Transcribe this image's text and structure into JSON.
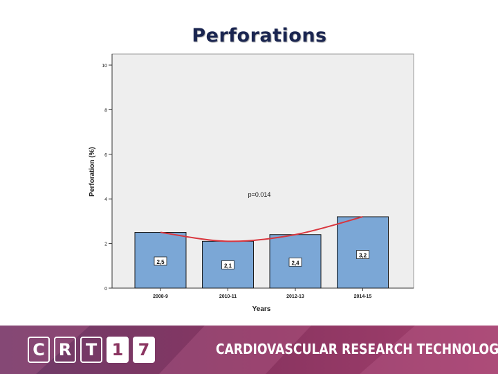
{
  "slide": {
    "title": "Perforations"
  },
  "chart_data": {
    "type": "bar",
    "categories": [
      "2008-9",
      "2010-11",
      "2012-13",
      "2014-15"
    ],
    "values": [
      2.5,
      2.1,
      2.4,
      3.2
    ],
    "value_labels": [
      "2,5",
      "2,1",
      "2,4",
      "3,2"
    ],
    "ylabel": "Perforation (%)",
    "xlabel": "Years",
    "ylim": [
      0,
      10
    ],
    "yticks": [
      0,
      2,
      4,
      6,
      8,
      10
    ],
    "annotation": "p=0.014",
    "trend_line": [
      2.5,
      2.1,
      2.4,
      3.2
    ],
    "colors": {
      "bar": "#7ba7d6",
      "bar_edge": "#1a1a1a",
      "trend": "#d9363e",
      "plot_bg": "#eeeeee"
    }
  },
  "footer": {
    "logo": [
      "C",
      "R",
      "T",
      "1",
      "7"
    ],
    "text": "CARDIOVASCULAR RESEARCH TECHNOLOGIES"
  }
}
